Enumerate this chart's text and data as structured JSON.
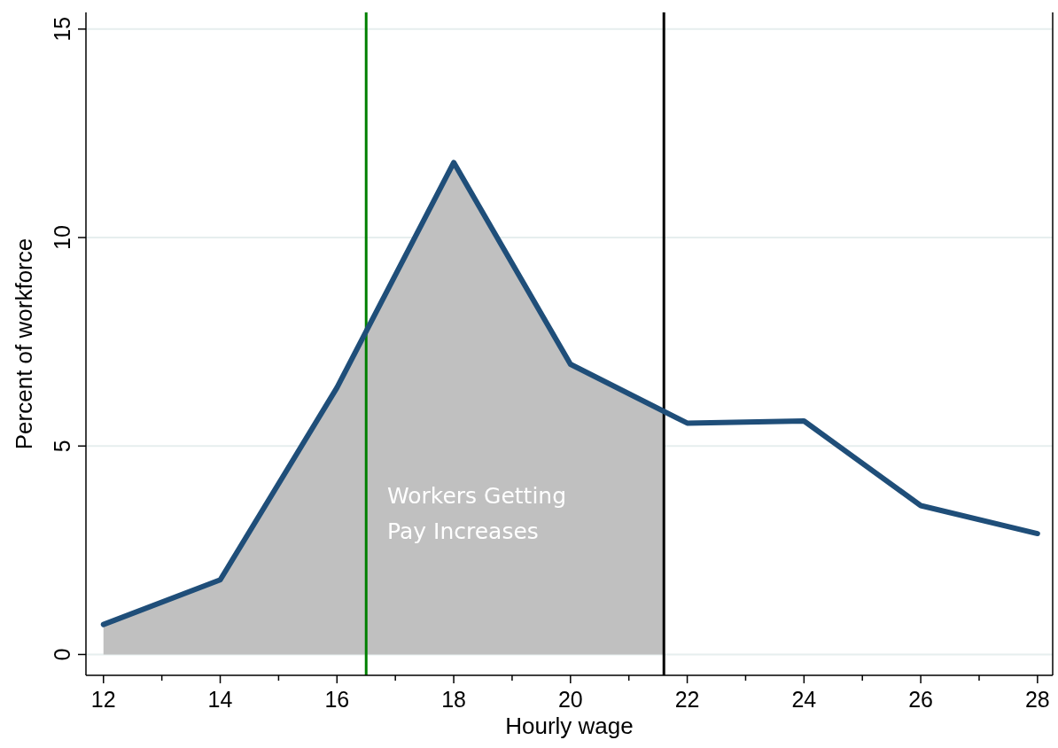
{
  "chart_data": {
    "type": "line",
    "xlabel": "Hourly wage",
    "ylabel": "Percent of workforce",
    "x": [
      12,
      14,
      16,
      18,
      20,
      22,
      24,
      26,
      28
    ],
    "series": [
      {
        "type": "area",
        "color": "#c0c0c0",
        "x": [
          12,
          14,
          16,
          18,
          20,
          21.6
        ],
        "values": [
          0.72,
          1.79,
          6.4,
          11.8,
          6.96,
          5.85
        ]
      },
      {
        "color": "#1f4e79",
        "values": [
          0.72,
          1.79,
          6.4,
          11.8,
          6.96,
          5.55,
          5.6,
          3.57,
          2.9
        ]
      }
    ],
    "xlim": [
      11.7,
      28.26
    ],
    "ylim": [
      -0.5,
      15.4
    ],
    "xticks": [
      12,
      {
        "value": 13,
        "label": null
      },
      14,
      {
        "value": 15,
        "label": null
      },
      16,
      {
        "value": 17,
        "label": null
      },
      18,
      {
        "value": 19,
        "label": null
      },
      20,
      {
        "value": 21,
        "label": null
      },
      22,
      {
        "value": 23,
        "label": null
      },
      24,
      {
        "value": 25,
        "label": null
      },
      26,
      {
        "value": 27,
        "label": null
      },
      28
    ],
    "yticks": [
      0,
      5,
      10,
      15
    ],
    "grid": "y",
    "ref_lines": [
      {
        "axis": "x",
        "value": 16.5,
        "color": "#008000"
      },
      {
        "axis": "x",
        "value": 21.6,
        "color": "#000000"
      }
    ],
    "annotations": [
      "Workers Getting\nPay Increases"
    ]
  }
}
